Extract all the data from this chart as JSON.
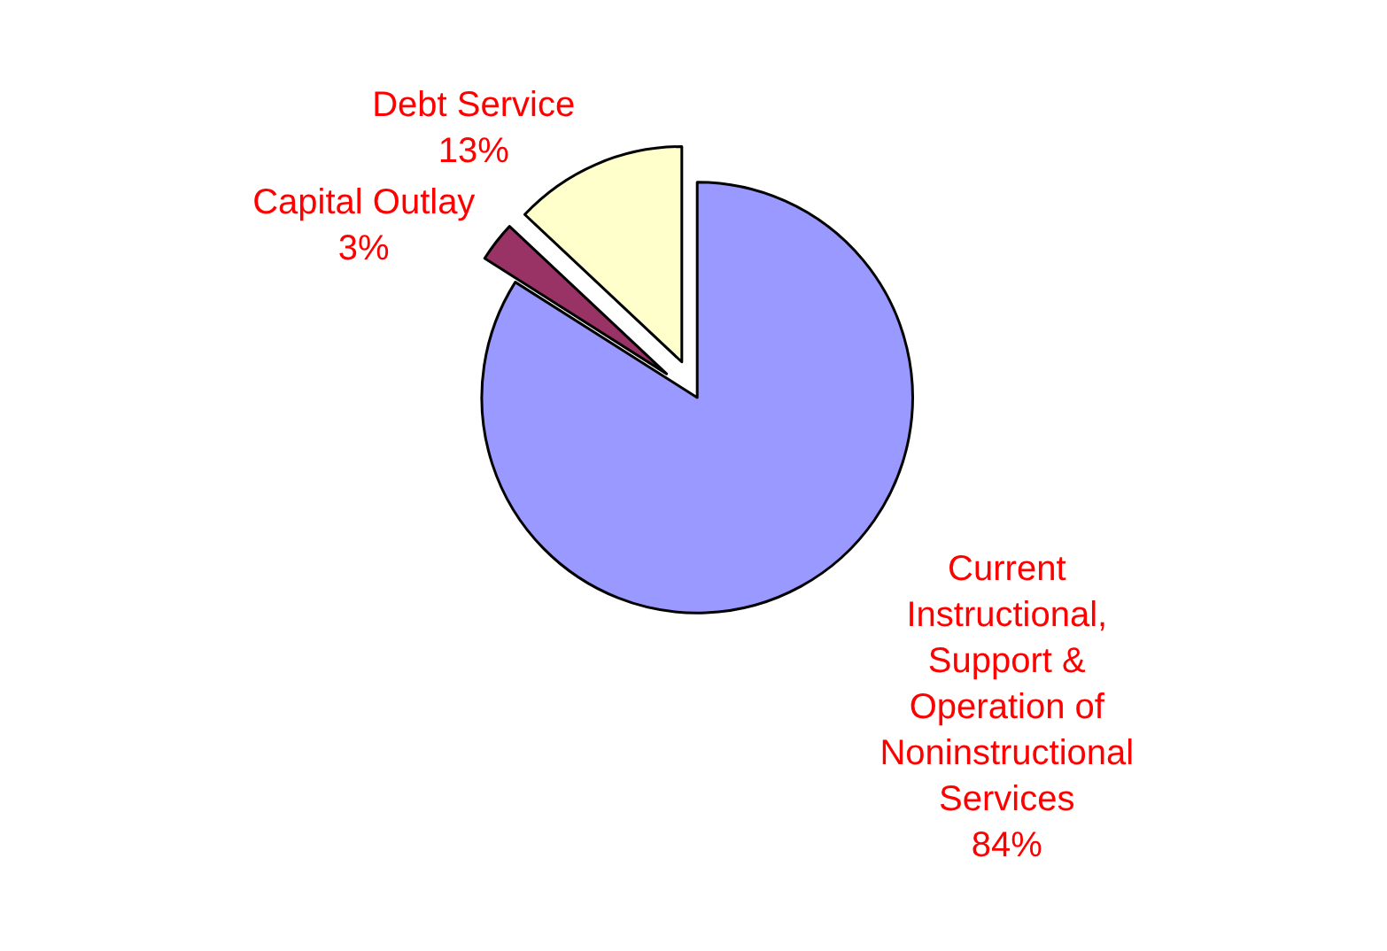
{
  "chart_data": {
    "type": "pie",
    "categories": [
      "Current Instructional, Support & Operation of Noninstructional Services",
      "Capital Outlay",
      "Debt Service"
    ],
    "values": [
      84,
      3,
      13
    ],
    "value_labels": [
      "84%",
      "3%",
      "13%"
    ],
    "colors": [
      "#9999ff",
      "#993366",
      "#ffffcc"
    ],
    "legend": false
  }
}
